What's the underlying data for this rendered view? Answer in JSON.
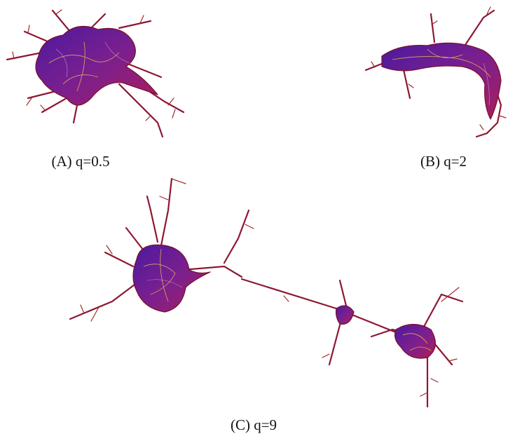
{
  "figure": {
    "panels": [
      {
        "caption": "(A) q=0.5"
      },
      {
        "caption": "(B) q=2"
      },
      {
        "caption": "(C) q=9"
      }
    ]
  }
}
